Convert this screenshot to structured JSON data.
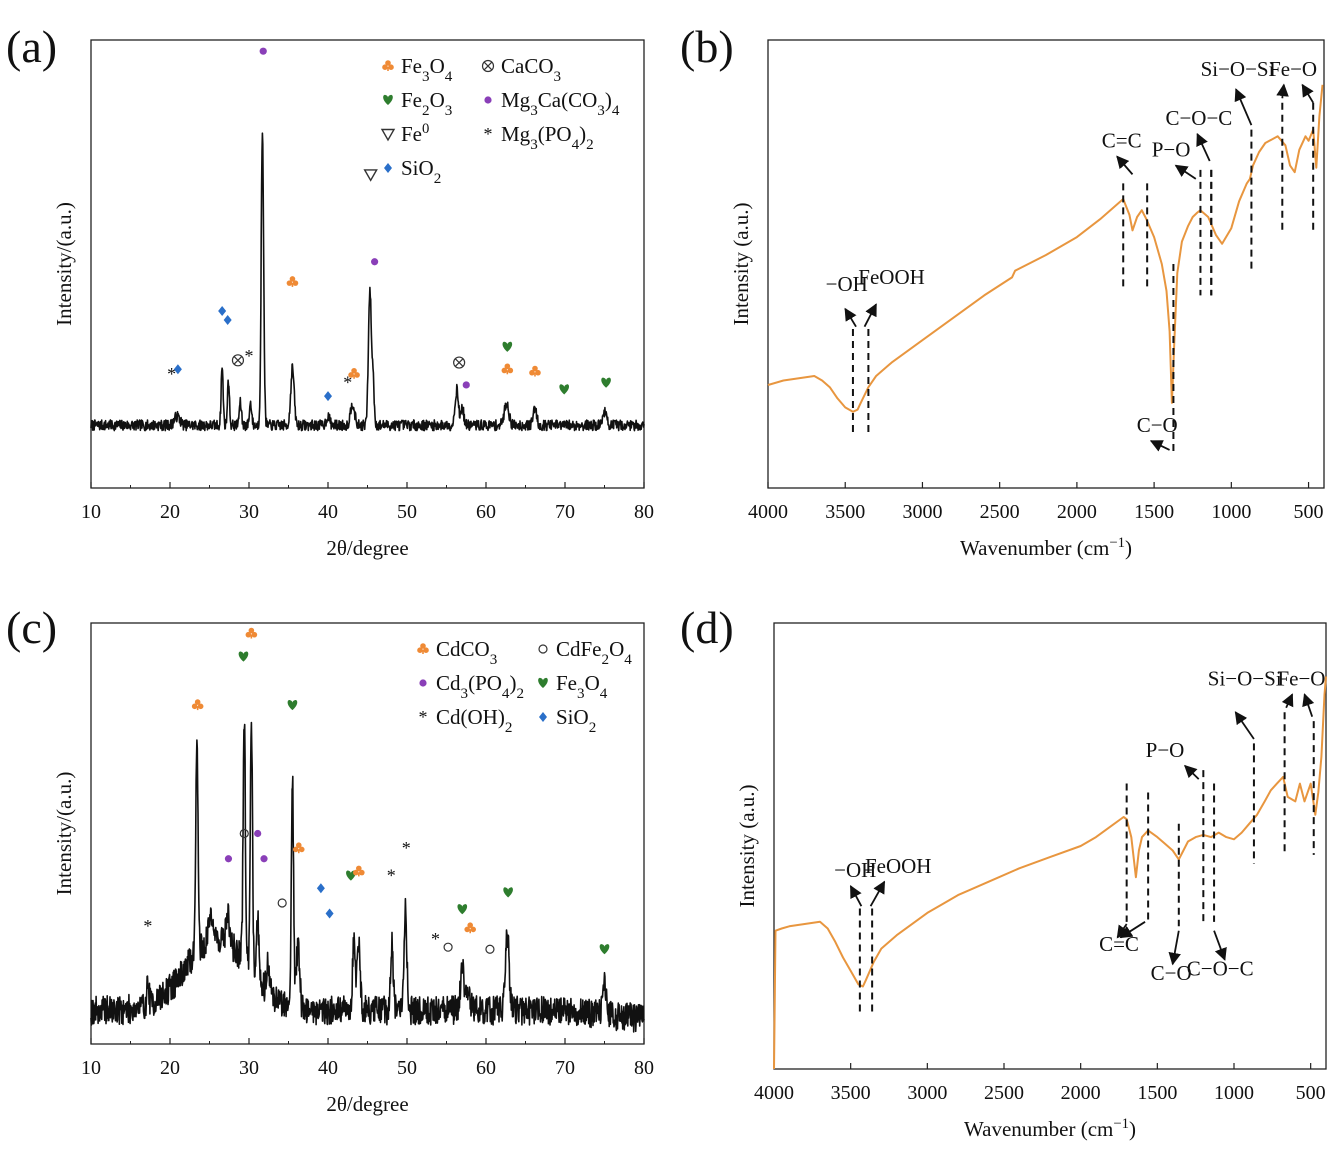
{
  "colors": {
    "xrd_line": "#111111",
    "ftir_line": "#e8963f",
    "orange": "#ef8a35",
    "green": "#2e7d2e",
    "purple": "#8a3fb8",
    "blue": "#2a6fc9",
    "gray": "#444444"
  },
  "chart_data": [
    {
      "panel": "(a)",
      "type": "line",
      "xlabel": "2θ/degree",
      "ylabel": "Intensity/(a.u.)",
      "xlim": [
        10,
        80
      ],
      "xticks": [
        "10",
        "20",
        "30",
        "40",
        "50",
        "60",
        "70",
        "80"
      ],
      "legend": [
        {
          "symbol": "club",
          "color": "orange",
          "label": "Fe3O4"
        },
        {
          "symbol": "otimes",
          "color": "gray",
          "label": "CaCO3"
        },
        {
          "symbol": "heart",
          "color": "green",
          "label": "Fe2O3"
        },
        {
          "symbol": "dot",
          "color": "purple",
          "label": "Mg3Ca(CO3)4"
        },
        {
          "symbol": "triangle",
          "color": "gray",
          "label": "Fe0"
        },
        {
          "symbol": "star",
          "color": "gray",
          "label": "Mg3(PO4)2"
        },
        {
          "symbol": "diamond",
          "color": "blue",
          "label": "SiO2"
        }
      ],
      "baseline": 0.14,
      "noise": 0.012,
      "peaks": [
        [
          20.9,
          0.02,
          0.5
        ],
        [
          26.6,
          0.13,
          0.18
        ],
        [
          27.4,
          0.1,
          0.18
        ],
        [
          28.9,
          0.05,
          0.2
        ],
        [
          30.2,
          0.05,
          0.2
        ],
        [
          31.7,
          0.65,
          0.22
        ],
        [
          35.5,
          0.13,
          0.3
        ],
        [
          40.0,
          0.02,
          0.3
        ],
        [
          43.1,
          0.05,
          0.35
        ],
        [
          45.3,
          0.3,
          0.26
        ],
        [
          45.7,
          0.1,
          0.2
        ],
        [
          56.3,
          0.08,
          0.3
        ],
        [
          57.0,
          0.04,
          0.25
        ],
        [
          62.6,
          0.05,
          0.4
        ],
        [
          66.2,
          0.04,
          0.3
        ],
        [
          75.0,
          0.03,
          0.35
        ]
      ],
      "markers": [
        {
          "x": 20.2,
          "y": 0.255,
          "symbol": "star"
        },
        {
          "x": 21.0,
          "y": 0.265,
          "symbol": "diamond"
        },
        {
          "x": 26.6,
          "y": 0.395,
          "symbol": "diamond"
        },
        {
          "x": 27.3,
          "y": 0.375,
          "symbol": "diamond"
        },
        {
          "x": 28.6,
          "y": 0.285,
          "symbol": "otimes"
        },
        {
          "x": 30.0,
          "y": 0.295,
          "symbol": "star"
        },
        {
          "x": 31.8,
          "y": 0.975,
          "symbol": "dot"
        },
        {
          "x": 35.5,
          "y": 0.46,
          "symbol": "club"
        },
        {
          "x": 40.0,
          "y": 0.205,
          "symbol": "diamond"
        },
        {
          "x": 42.5,
          "y": 0.235,
          "symbol": "star"
        },
        {
          "x": 43.3,
          "y": 0.255,
          "symbol": "club"
        },
        {
          "x": 45.4,
          "y": 0.7,
          "symbol": "triangle"
        },
        {
          "x": 45.9,
          "y": 0.505,
          "symbol": "dot"
        },
        {
          "x": 56.6,
          "y": 0.28,
          "symbol": "otimes"
        },
        {
          "x": 57.5,
          "y": 0.23,
          "symbol": "dot"
        },
        {
          "x": 62.7,
          "y": 0.315,
          "symbol": "heart"
        },
        {
          "x": 62.7,
          "y": 0.265,
          "symbol": "club"
        },
        {
          "x": 66.2,
          "y": 0.26,
          "symbol": "club"
        },
        {
          "x": 69.9,
          "y": 0.22,
          "symbol": "heart"
        },
        {
          "x": 75.2,
          "y": 0.235,
          "symbol": "heart"
        }
      ]
    },
    {
      "panel": "(b)",
      "type": "line",
      "xlabel": "Wavenumber (cm−1)",
      "ylabel": "Intensity (a.u.)",
      "xlim": [
        4000,
        400
      ],
      "xticks": [
        "4000",
        "3500",
        "3000",
        "2500",
        "2000",
        "1500",
        "1000",
        "500"
      ],
      "x": [
        4000,
        3900,
        3800,
        3700,
        3650,
        3600,
        3550,
        3500,
        3450,
        3420,
        3400,
        3350,
        3300,
        3200,
        3000,
        2800,
        2600,
        2420,
        2400,
        2200,
        2000,
        1850,
        1750,
        1700,
        1660,
        1640,
        1610,
        1580,
        1550,
        1500,
        1450,
        1420,
        1400,
        1385,
        1370,
        1350,
        1320,
        1280,
        1250,
        1220,
        1200,
        1150,
        1100,
        1060,
        1000,
        950,
        900,
        880,
        860,
        820,
        780,
        700,
        650,
        620,
        590,
        560,
        520,
        500,
        470,
        450,
        430,
        410
      ],
      "y": [
        0.23,
        0.24,
        0.245,
        0.25,
        0.24,
        0.225,
        0.2,
        0.18,
        0.17,
        0.175,
        0.19,
        0.225,
        0.25,
        0.28,
        0.33,
        0.38,
        0.43,
        0.47,
        0.485,
        0.52,
        0.56,
        0.6,
        0.63,
        0.645,
        0.61,
        0.575,
        0.605,
        0.62,
        0.6,
        0.56,
        0.5,
        0.44,
        0.35,
        0.19,
        0.32,
        0.48,
        0.55,
        0.585,
        0.605,
        0.615,
        0.62,
        0.605,
        0.565,
        0.545,
        0.58,
        0.64,
        0.68,
        0.69,
        0.72,
        0.75,
        0.77,
        0.785,
        0.765,
        0.72,
        0.705,
        0.755,
        0.785,
        0.775,
        0.8,
        0.715,
        0.83,
        0.9
      ],
      "annotations": [
        {
          "label": "−OH",
          "x": 3490,
          "y": 0.44,
          "line_x": 3450,
          "y_from": 0.355,
          "y_to": 0.125,
          "arrow": [
            3430,
            0.36,
            3500,
            0.4
          ]
        },
        {
          "label": "FeOOH",
          "x": 3200,
          "y": 0.455,
          "line_x": 3350,
          "y_from": 0.355,
          "y_to": 0.125,
          "arrow": [
            3375,
            0.36,
            3300,
            0.41
          ]
        },
        {
          "label": "C=C",
          "x": 1710,
          "y": 0.76,
          "line_x": 1700,
          "y_from": 0.68,
          "y_to": 0.45,
          "arrow": [
            1640,
            0.7,
            1740,
            0.74
          ]
        },
        {
          "label": "",
          "line_x": 1545,
          "y_from": 0.68,
          "y_to": 0.45,
          "arrow": null
        },
        {
          "label": "P−O",
          "x": 1390,
          "y": 0.74,
          "line_x": 1200,
          "y_from": 0.71,
          "y_to": 0.43,
          "arrow": [
            1230,
            0.69,
            1360,
            0.72
          ]
        },
        {
          "label": "",
          "line_x": 1130,
          "y_from": 0.71,
          "y_to": 0.43,
          "arrow": null
        },
        {
          "label": "C−O−C",
          "x": 1210,
          "y": 0.81,
          "line_x": 1130,
          "y_from": 0.71,
          "y_to": 0.43,
          "arrow": [
            1140,
            0.73,
            1220,
            0.79
          ]
        },
        {
          "label": "Si−O−Si",
          "x": 960,
          "y": 0.92,
          "line_x": 870,
          "y_from": 0.8,
          "y_to": 0.48,
          "arrow": [
            870,
            0.81,
            970,
            0.89
          ]
        },
        {
          "label": "Fe−O",
          "x": 600,
          "y": 0.92,
          "line_x": 670,
          "y_from": 0.86,
          "y_to": 0.57,
          "arrow": [
            670,
            0.87,
            660,
            0.9
          ]
        },
        {
          "label": "",
          "line_x": 470,
          "y_from": 0.86,
          "y_to": 0.57,
          "arrow": [
            470,
            0.86,
            540,
            0.9
          ]
        },
        {
          "label": "C−O",
          "x": 1480,
          "y": 0.125,
          "line_x": 1375,
          "y_from": 0.5,
          "y_to": 0.08,
          "arrow": [
            1400,
            0.085,
            1520,
            0.105
          ]
        }
      ]
    },
    {
      "panel": "(c)",
      "type": "line",
      "xlabel": "2θ/degree",
      "ylabel": "Intensity/(a.u.)",
      "xlim": [
        10,
        80
      ],
      "xticks": [
        "10",
        "20",
        "30",
        "40",
        "50",
        "60",
        "70",
        "80"
      ],
      "legend": [
        {
          "symbol": "club",
          "color": "orange",
          "label": "CdCO3"
        },
        {
          "symbol": "circle",
          "color": "gray",
          "label": "CdFe2O4"
        },
        {
          "symbol": "dot",
          "color": "purple",
          "label": "Cd3(PO4)2"
        },
        {
          "symbol": "heart",
          "color": "green",
          "label": "Fe3O4"
        },
        {
          "symbol": "star",
          "color": "gray",
          "label": "Cd(OH)2"
        },
        {
          "symbol": "diamond",
          "color": "blue",
          "label": "SiO2"
        }
      ],
      "baseline": 0.08,
      "noise": 0.035,
      "hump": [
        26,
        0.17,
        5.5
      ],
      "peaks": [
        [
          17.2,
          0.05,
          0.2
        ],
        [
          23.4,
          0.49,
          0.22
        ],
        [
          25.2,
          0.07,
          0.35
        ],
        [
          27.3,
          0.07,
          0.3
        ],
        [
          29.4,
          0.58,
          0.2
        ],
        [
          30.3,
          0.6,
          0.2
        ],
        [
          31.1,
          0.14,
          0.25
        ],
        [
          32.4,
          0.08,
          0.25
        ],
        [
          35.5,
          0.55,
          0.2
        ],
        [
          36.2,
          0.15,
          0.3
        ],
        [
          43.3,
          0.17,
          0.25
        ],
        [
          43.9,
          0.17,
          0.25
        ],
        [
          48.1,
          0.16,
          0.22
        ],
        [
          49.8,
          0.24,
          0.25
        ],
        [
          57.0,
          0.1,
          0.35
        ],
        [
          57.8,
          0.05,
          0.3
        ],
        [
          62.7,
          0.17,
          0.35
        ],
        [
          75.0,
          0.07,
          0.3
        ]
      ],
      "markers": [
        {
          "x": 17.2,
          "y": 0.28,
          "symbol": "star"
        },
        {
          "x": 23.5,
          "y": 0.805,
          "symbol": "club"
        },
        {
          "x": 27.4,
          "y": 0.44,
          "symbol": "dot"
        },
        {
          "x": 29.3,
          "y": 0.92,
          "symbol": "heart"
        },
        {
          "x": 30.3,
          "y": 0.975,
          "symbol": "club"
        },
        {
          "x": 29.4,
          "y": 0.5,
          "symbol": "circle"
        },
        {
          "x": 31.1,
          "y": 0.5,
          "symbol": "dot"
        },
        {
          "x": 31.9,
          "y": 0.44,
          "symbol": "dot"
        },
        {
          "x": 35.5,
          "y": 0.805,
          "symbol": "heart"
        },
        {
          "x": 36.3,
          "y": 0.465,
          "symbol": "club"
        },
        {
          "x": 34.2,
          "y": 0.335,
          "symbol": "circle"
        },
        {
          "x": 39.1,
          "y": 0.37,
          "symbol": "diamond"
        },
        {
          "x": 40.2,
          "y": 0.31,
          "symbol": "diamond"
        },
        {
          "x": 42.9,
          "y": 0.4,
          "symbol": "heart"
        },
        {
          "x": 43.9,
          "y": 0.41,
          "symbol": "club"
        },
        {
          "x": 48.0,
          "y": 0.4,
          "symbol": "star"
        },
        {
          "x": 49.9,
          "y": 0.465,
          "symbol": "star"
        },
        {
          "x": 53.6,
          "y": 0.25,
          "symbol": "star"
        },
        {
          "x": 55.2,
          "y": 0.23,
          "symbol": "circle"
        },
        {
          "x": 57.0,
          "y": 0.32,
          "symbol": "heart"
        },
        {
          "x": 58.0,
          "y": 0.275,
          "symbol": "club"
        },
        {
          "x": 60.5,
          "y": 0.225,
          "symbol": "circle"
        },
        {
          "x": 62.8,
          "y": 0.36,
          "symbol": "heart"
        },
        {
          "x": 75.0,
          "y": 0.225,
          "symbol": "heart"
        }
      ]
    },
    {
      "panel": "(d)",
      "type": "line",
      "xlabel": "Wavenumber (cm−1)",
      "ylabel": "Intensity (a.u.)",
      "xlim": [
        4000,
        400
      ],
      "xticks": [
        "4000",
        "3500",
        "3000",
        "2500",
        "2000",
        "1500",
        "1000",
        "500"
      ],
      "x": [
        4000,
        3990,
        3950,
        3900,
        3800,
        3700,
        3650,
        3600,
        3550,
        3500,
        3450,
        3420,
        3400,
        3350,
        3300,
        3200,
        3000,
        2900,
        2800,
        2600,
        2400,
        2200,
        2000,
        1900,
        1800,
        1720,
        1700,
        1670,
        1640,
        1620,
        1600,
        1560,
        1500,
        1450,
        1400,
        1380,
        1360,
        1330,
        1300,
        1250,
        1200,
        1150,
        1100,
        1050,
        1000,
        950,
        900,
        850,
        800,
        760,
        720,
        680,
        650,
        600,
        570,
        540,
        500,
        470,
        450,
        430,
        410,
        400
      ],
      "y": [
        0.0,
        0.31,
        0.315,
        0.32,
        0.325,
        0.33,
        0.315,
        0.285,
        0.25,
        0.22,
        0.19,
        0.185,
        0.2,
        0.24,
        0.27,
        0.3,
        0.35,
        0.37,
        0.39,
        0.42,
        0.45,
        0.475,
        0.5,
        0.52,
        0.545,
        0.565,
        0.56,
        0.52,
        0.43,
        0.49,
        0.52,
        0.535,
        0.52,
        0.505,
        0.49,
        0.48,
        0.47,
        0.49,
        0.51,
        0.52,
        0.525,
        0.52,
        0.53,
        0.52,
        0.515,
        0.53,
        0.55,
        0.57,
        0.6,
        0.625,
        0.64,
        0.655,
        0.61,
        0.6,
        0.64,
        0.6,
        0.64,
        0.57,
        0.62,
        0.7,
        0.84,
        0.88
      ],
      "annotations": [
        {
          "label": "−OH",
          "x": 3470,
          "y": 0.43,
          "line_x": 3440,
          "y_from": 0.36,
          "y_to": 0.12,
          "arrow": [
            3430,
            0.365,
            3500,
            0.41
          ]
        },
        {
          "label": "FeOOH",
          "x": 3190,
          "y": 0.44,
          "line_x": 3360,
          "y_from": 0.36,
          "y_to": 0.12,
          "arrow": [
            3370,
            0.365,
            3280,
            0.42
          ]
        },
        {
          "label": "C=C",
          "x": 1750,
          "y": 0.265,
          "line_x": 1700,
          "y_from": 0.64,
          "y_to": 0.33,
          "arrow": [
            1580,
            0.33,
            1740,
            0.295
          ]
        },
        {
          "label": "",
          "line_x": 1560,
          "y_from": 0.62,
          "y_to": 0.33,
          "arrow": [
            1700,
            0.325,
            1760,
            0.295
          ]
        },
        {
          "label": "C−O",
          "x": 1410,
          "y": 0.2,
          "line_x": 1360,
          "y_from": 0.55,
          "y_to": 0.32,
          "arrow": [
            1360,
            0.31,
            1400,
            0.235
          ]
        },
        {
          "label": "P−O",
          "x": 1450,
          "y": 0.7,
          "line_x": 1200,
          "y_from": 0.67,
          "y_to": 0.33,
          "arrow": [
            1230,
            0.65,
            1320,
            0.68
          ]
        },
        {
          "label": "C−O−C",
          "x": 1090,
          "y": 0.21,
          "line_x": 1130,
          "y_from": 0.64,
          "y_to": 0.33,
          "arrow": [
            1130,
            0.31,
            1060,
            0.245
          ]
        },
        {
          "label": "Si−O−Si",
          "x": 930,
          "y": 0.86,
          "line_x": 870,
          "y_from": 0.73,
          "y_to": 0.46,
          "arrow": [
            870,
            0.74,
            990,
            0.8
          ]
        },
        {
          "label": "Fe−O",
          "x": 560,
          "y": 0.86,
          "line_x": 670,
          "y_from": 0.8,
          "y_to": 0.48,
          "arrow": [
            660,
            0.81,
            620,
            0.84
          ]
        },
        {
          "label": "",
          "line_x": 480,
          "y_from": 0.78,
          "y_to": 0.48,
          "arrow": [
            490,
            0.79,
            540,
            0.84
          ]
        }
      ]
    }
  ]
}
